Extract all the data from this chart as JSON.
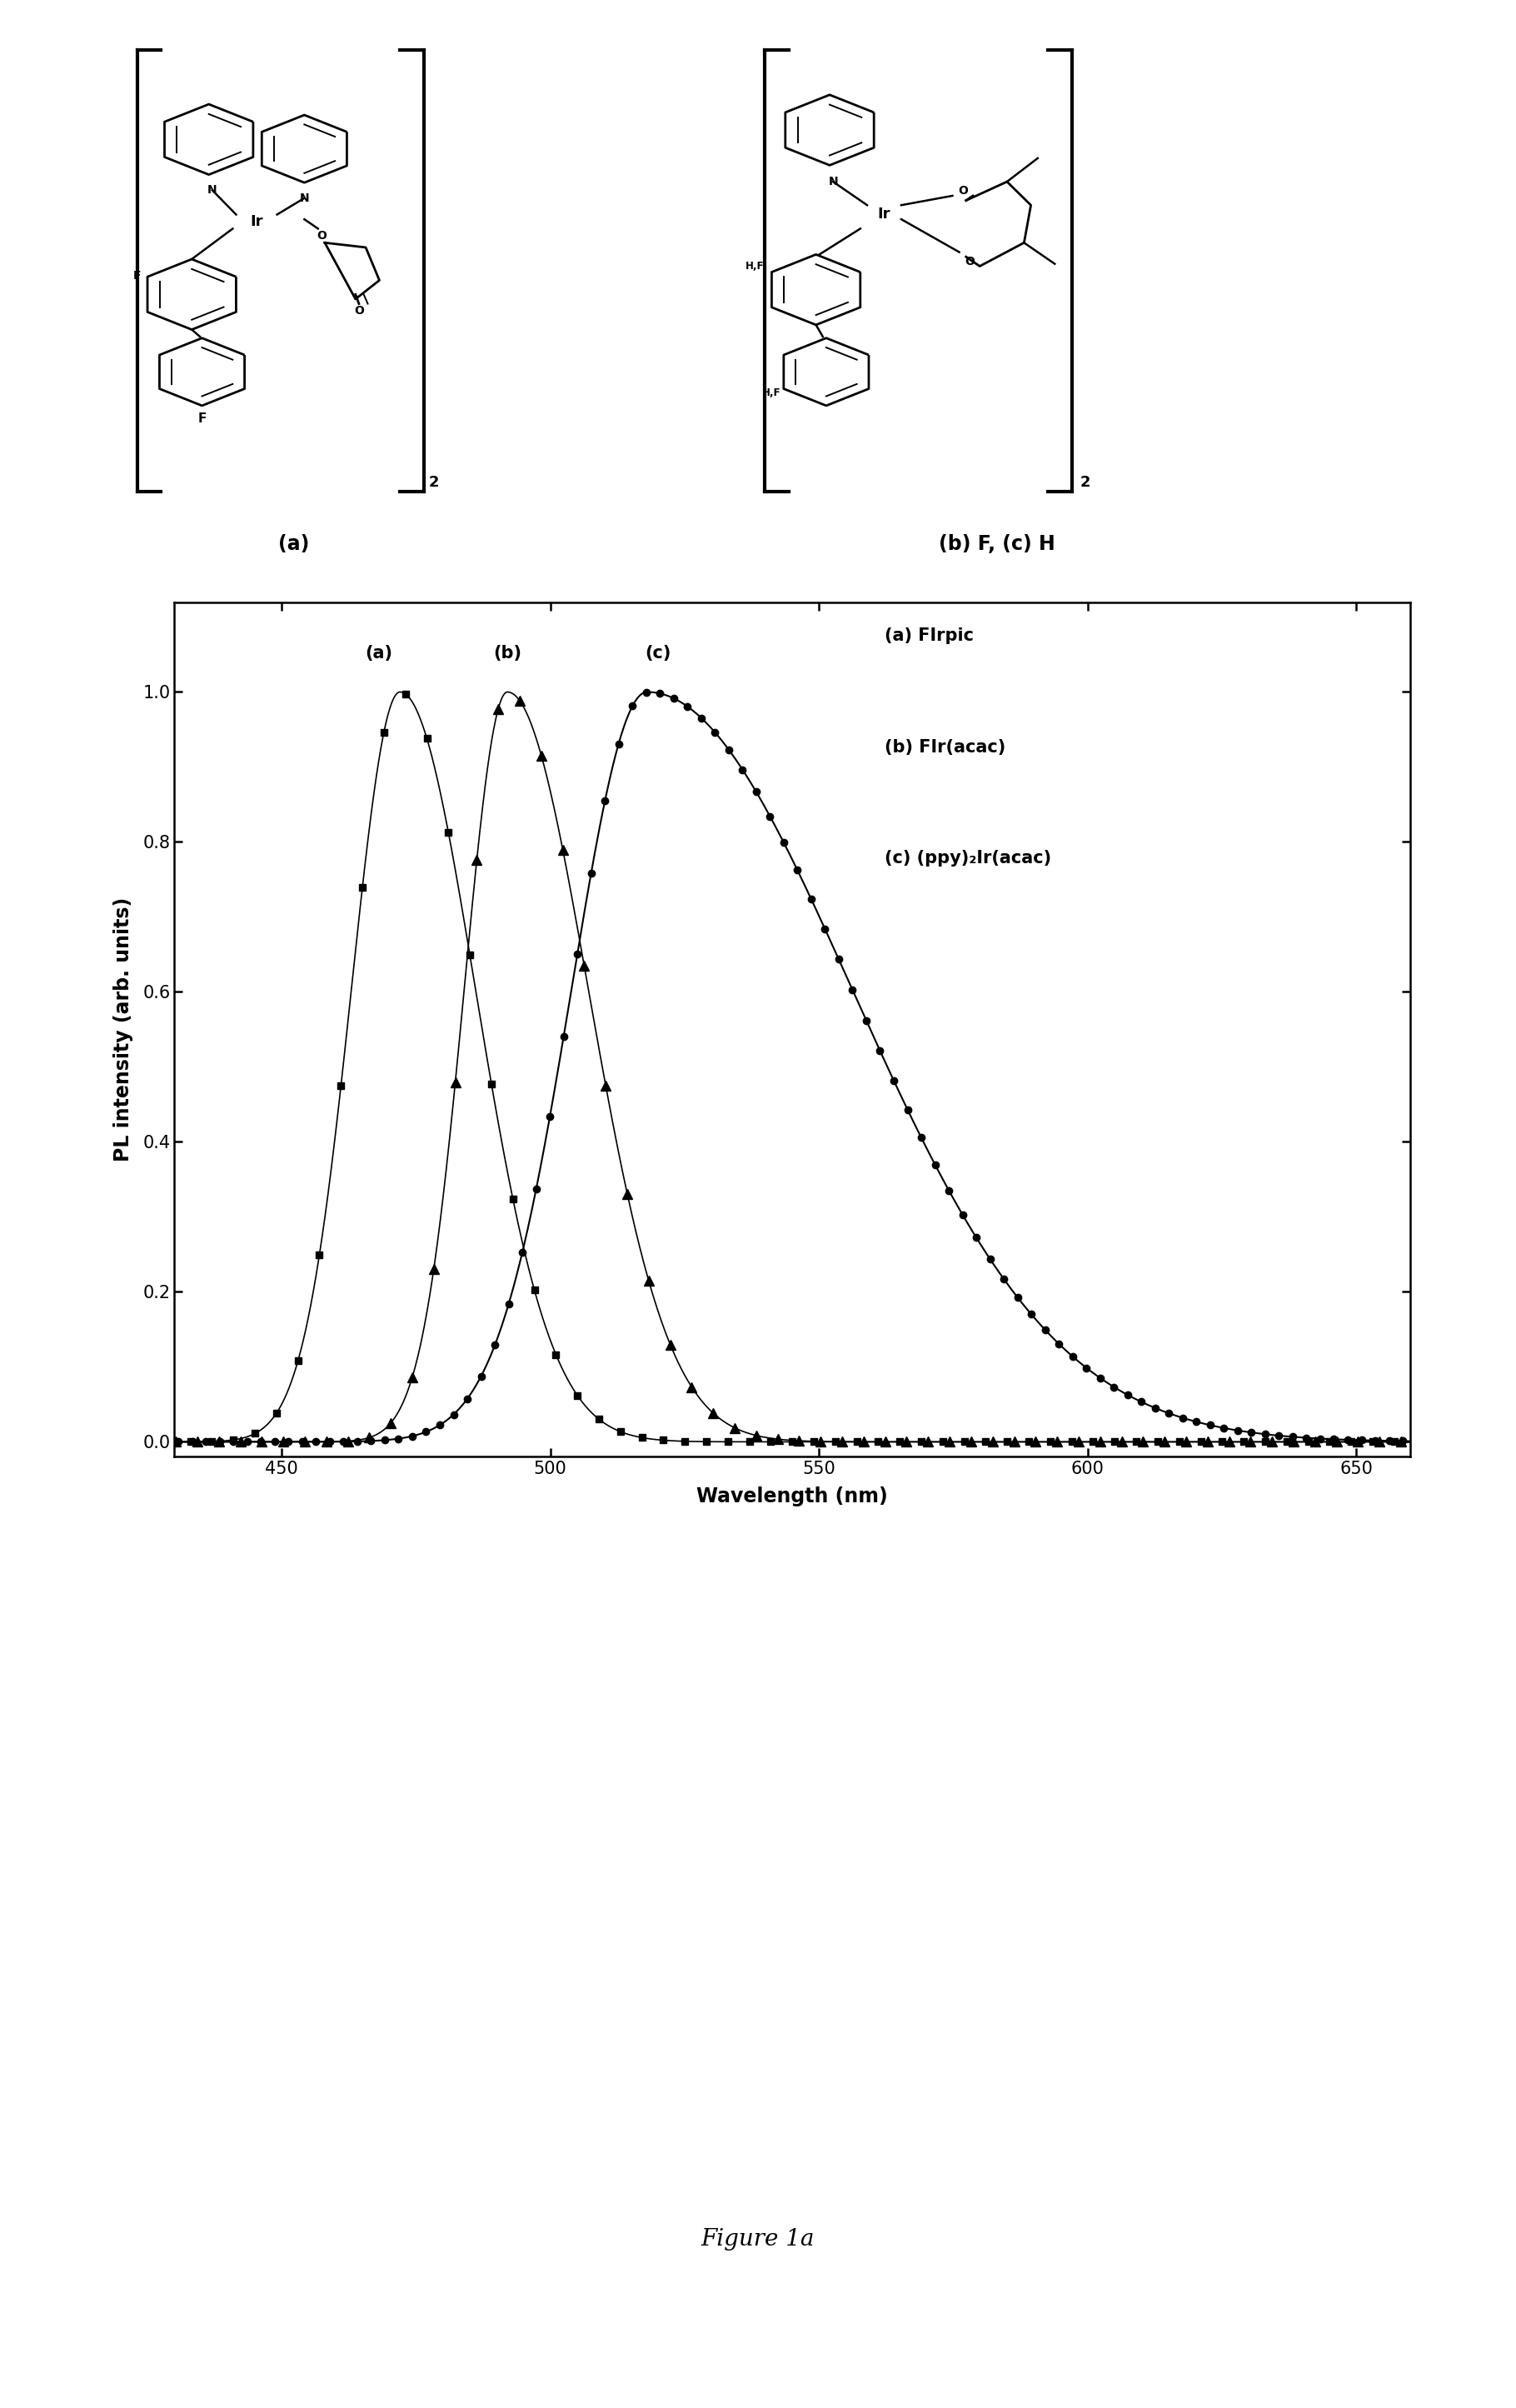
{
  "title": "Figure 1a",
  "xlabel": "Wavelength (nm)",
  "ylabel": "PL intensity (arb. units)",
  "xlim": [
    430,
    660
  ],
  "ylim": [
    -0.02,
    1.12
  ],
  "xticks": [
    450,
    500,
    550,
    600,
    650
  ],
  "yticks": [
    0.0,
    0.2,
    0.4,
    0.6,
    0.8,
    1.0
  ],
  "legend_entries": [
    "(a) FIrpic",
    "(b) FIr(acac)",
    "(c) (ppy)₂Ir(acac)"
  ],
  "curve_a_peak": 472,
  "curve_a_wl": 9,
  "curve_a_wr": 14,
  "curve_b_peak": 492,
  "curve_b_wl": 8,
  "curve_b_wr": 15,
  "curve_c_peak": 518,
  "curve_c_wl": 14,
  "curve_c_wr": 38,
  "background_color": "#ffffff",
  "label_fontsize": 17,
  "tick_fontsize": 15,
  "legend_fontsize": 15,
  "title_fontsize": 20,
  "curve_label_fontsize": 15
}
